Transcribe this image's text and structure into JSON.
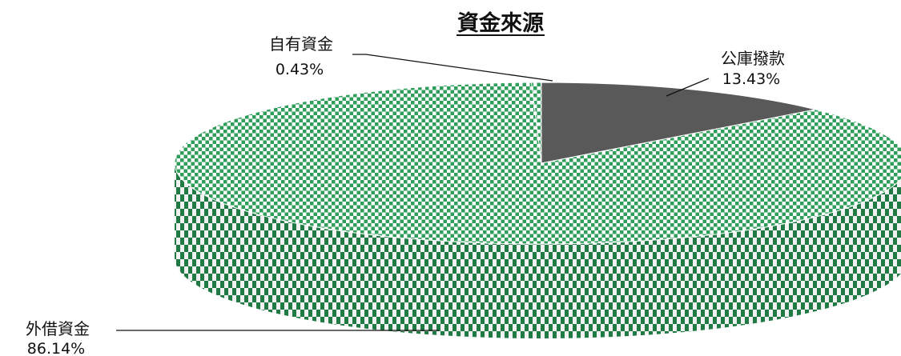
{
  "chart_data": {
    "type": "pie",
    "title": "資金來源",
    "categories": [
      "公庫撥款",
      "外借資金",
      "自有資金"
    ],
    "values": [
      13.43,
      86.14,
      0.43
    ],
    "value_labels": [
      "13.43%",
      "86.14%",
      "0.43%"
    ],
    "style": "3d",
    "legend": "none",
    "colors": {
      "公庫撥款": "#595959",
      "外借資金": "#2e9e5a",
      "自有資金": "#2e9e5a",
      "pattern_light": "#ffffff",
      "side_dark": "#1f7a44"
    }
  }
}
